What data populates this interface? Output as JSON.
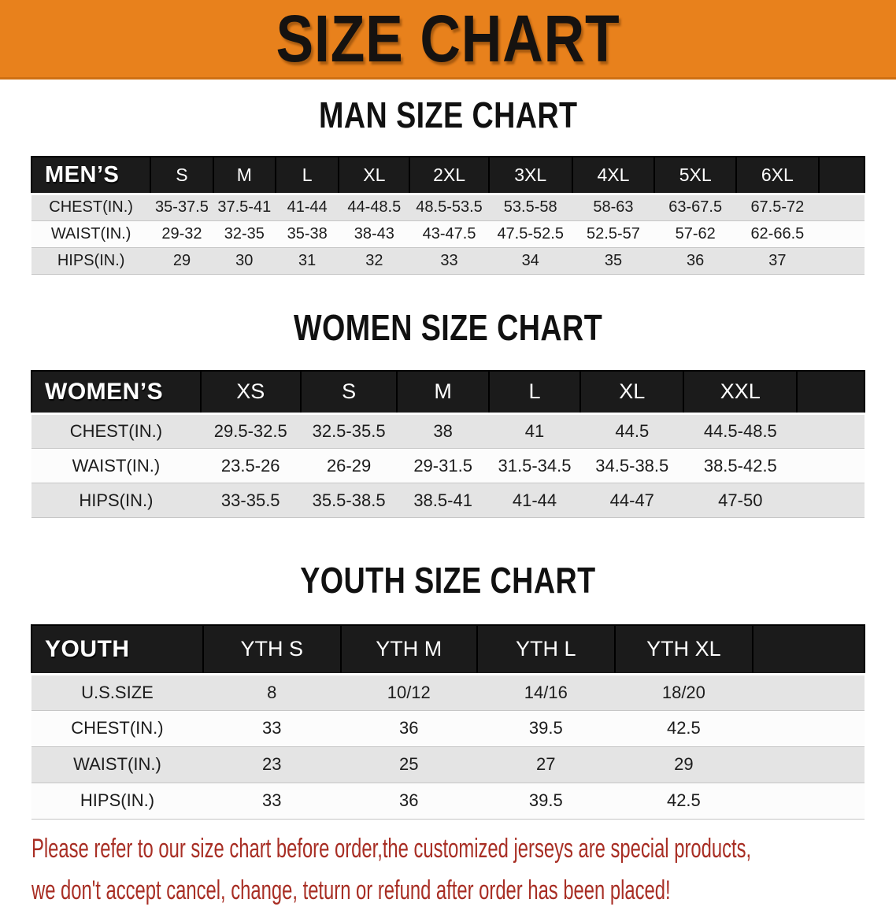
{
  "banner": {
    "title": "SIZE CHART",
    "bg_color": "#E8811C",
    "text_color": "#151210"
  },
  "colors": {
    "header_bar": "#1B1B1B",
    "row_gray": "#E4E4E4",
    "row_white": "#FCFCFC",
    "note_red": "#A82E24"
  },
  "sections": [
    {
      "heading": "MAN SIZE CHART",
      "table": {
        "header": [
          "MEN’S",
          "S",
          "M",
          "L",
          "XL",
          "2XL",
          "3XL",
          "4XL",
          "5XL",
          "6XL"
        ],
        "rows": [
          [
            "CHEST(IN.)",
            "35-37.5",
            "37.5-41",
            "41-44",
            "44-48.5",
            "48.5-53.5",
            "53.5-58",
            "58-63",
            "63-67.5",
            "67.5-72"
          ],
          [
            "WAIST(IN.)",
            "29-32",
            "32-35",
            "35-38",
            "38-43",
            "43-47.5",
            "47.5-52.5",
            "52.5-57",
            "57-62",
            "62-66.5"
          ],
          [
            "HIPS(IN.)",
            "29",
            "30",
            "31",
            "32",
            "33",
            "34",
            "35",
            "36",
            "37"
          ]
        ]
      }
    },
    {
      "heading": "WOMEN SIZE CHART",
      "table": {
        "header": [
          "WOMEN’S",
          "XS",
          "S",
          "M",
          "L",
          "XL",
          "XXL"
        ],
        "rows": [
          [
            "CHEST(IN.)",
            "29.5-32.5",
            "32.5-35.5",
            "38",
            "41",
            "44.5",
            "44.5-48.5"
          ],
          [
            "WAIST(IN.)",
            "23.5-26",
            "26-29",
            "29-31.5",
            "31.5-34.5",
            "34.5-38.5",
            "38.5-42.5"
          ],
          [
            "HIPS(IN.)",
            "33-35.5",
            "35.5-38.5",
            "38.5-41",
            "41-44",
            "44-47",
            "47-50"
          ]
        ]
      }
    },
    {
      "heading": "YOUTH SIZE CHART",
      "table": {
        "header": [
          "YOUTH",
          "YTH S",
          "YTH M",
          "YTH L",
          "YTH XL"
        ],
        "rows": [
          [
            "U.S.SIZE",
            "8",
            "10/12",
            "14/16",
            "18/20"
          ],
          [
            "CHEST(IN.)",
            "33",
            "36",
            "39.5",
            "42.5"
          ],
          [
            "WAIST(IN.)",
            "23",
            "25",
            "27",
            "29"
          ],
          [
            "HIPS(IN.)",
            "33",
            "36",
            "39.5",
            "42.5"
          ]
        ]
      }
    }
  ],
  "note": {
    "lines": [
      "Please refer to our size chart before order,the customized jerseys are special products,",
      "we don't accept cancel, change, teturn or refund after order has been placed!"
    ]
  }
}
